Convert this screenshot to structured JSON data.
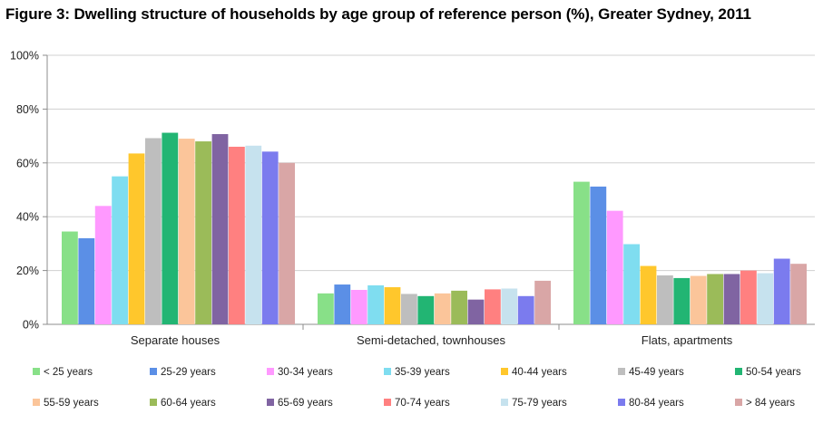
{
  "title": "Figure 3: Dwelling structure of households by age group of reference person (%), Greater Sydney, 2011",
  "chart_data": {
    "type": "bar",
    "title": "Figure 3: Dwelling structure of households by age group of reference person (%), Greater Sydney, 2011",
    "xlabel": "",
    "ylabel": "",
    "ylim": [
      0,
      100
    ],
    "yticks": [
      "0%",
      "20%",
      "40%",
      "60%",
      "80%",
      "100%"
    ],
    "grid": true,
    "legend_position": "bottom",
    "categories": [
      "Separate houses",
      "Semi-detached, townhouses",
      "Flats, apartments"
    ],
    "series": [
      {
        "name": "< 25 years",
        "color": "#88E088",
        "values": [
          34.5,
          11.5,
          53.0
        ]
      },
      {
        "name": "25-29 years",
        "color": "#5B8FE6",
        "values": [
          32.0,
          14.8,
          51.2
        ]
      },
      {
        "name": "30-34 years",
        "color": "#FF99FF",
        "values": [
          44.0,
          12.8,
          42.2
        ]
      },
      {
        "name": "35-39 years",
        "color": "#7FDDF0",
        "values": [
          55.0,
          14.5,
          29.8
        ]
      },
      {
        "name": "40-44 years",
        "color": "#FFC72C",
        "values": [
          63.5,
          13.8,
          21.7
        ]
      },
      {
        "name": "45-49 years",
        "color": "#BEBEBE",
        "values": [
          69.2,
          11.3,
          18.2
        ]
      },
      {
        "name": "50-54 years",
        "color": "#22B573",
        "values": [
          71.2,
          10.5,
          17.2
        ]
      },
      {
        "name": "55-59 years",
        "color": "#FBC59A",
        "values": [
          69.0,
          11.5,
          18.0
        ]
      },
      {
        "name": "60-64 years",
        "color": "#9BBB59",
        "values": [
          68.0,
          12.5,
          18.7
        ]
      },
      {
        "name": "65-69 years",
        "color": "#8064A2",
        "values": [
          70.7,
          9.2,
          18.7
        ]
      },
      {
        "name": "70-74 years",
        "color": "#FF8080",
        "values": [
          66.0,
          13.0,
          20.0
        ]
      },
      {
        "name": "75-79 years",
        "color": "#C6E2EE",
        "values": [
          66.4,
          13.3,
          19.0
        ]
      },
      {
        "name": "80-84 years",
        "color": "#7B7BEE",
        "values": [
          64.2,
          10.5,
          24.4
        ]
      },
      {
        "name": "> 84 years",
        "color": "#D9A6A6",
        "values": [
          60.0,
          16.2,
          22.5
        ]
      }
    ]
  }
}
